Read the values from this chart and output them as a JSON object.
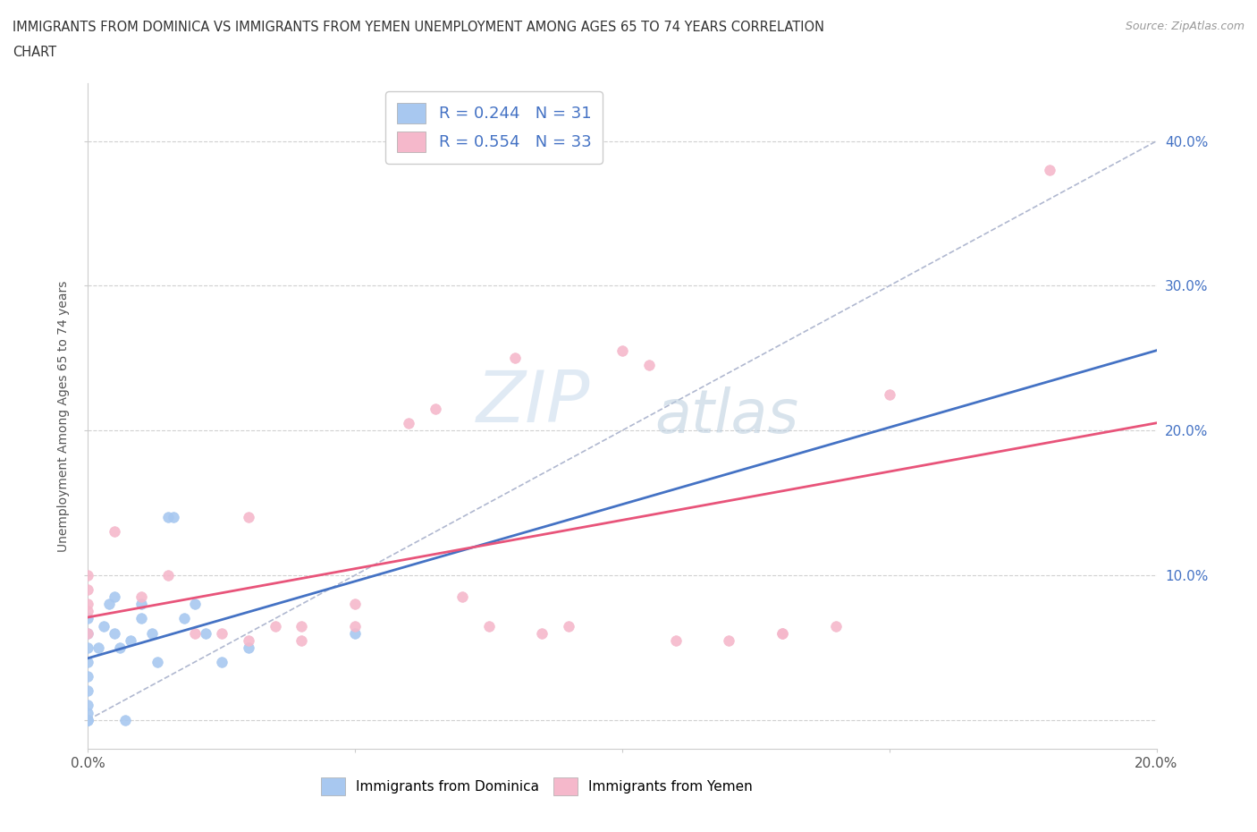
{
  "title_line1": "IMMIGRANTS FROM DOMINICA VS IMMIGRANTS FROM YEMEN UNEMPLOYMENT AMONG AGES 65 TO 74 YEARS CORRELATION",
  "title_line2": "CHART",
  "source": "Source: ZipAtlas.com",
  "ylabel": "Unemployment Among Ages 65 to 74 years",
  "xlim": [
    0.0,
    0.2
  ],
  "ylim": [
    -0.02,
    0.44
  ],
  "xticks": [
    0.0,
    0.05,
    0.1,
    0.15,
    0.2
  ],
  "xtick_labels": [
    "0.0%",
    "",
    "",
    "",
    "20.0%"
  ],
  "yticks": [
    0.0,
    0.1,
    0.2,
    0.3,
    0.4
  ],
  "ytick_labels": [
    "",
    "10.0%",
    "20.0%",
    "30.0%",
    "40.0%"
  ],
  "dominica_color": "#a8c8f0",
  "yemen_color": "#f5b8cb",
  "dominica_line_color": "#4472c4",
  "yemen_line_color": "#e8547a",
  "R_dominica": 0.244,
  "N_dominica": 31,
  "R_yemen": 0.554,
  "N_yemen": 33,
  "dominica_x": [
    0.0,
    0.0,
    0.0,
    0.0,
    0.0,
    0.0,
    0.0,
    0.0,
    0.0,
    0.0,
    0.0,
    0.002,
    0.003,
    0.004,
    0.005,
    0.005,
    0.006,
    0.007,
    0.008,
    0.01,
    0.01,
    0.012,
    0.013,
    0.015,
    0.016,
    0.018,
    0.02,
    0.022,
    0.025,
    0.03,
    0.05
  ],
  "dominica_y": [
    0.0,
    0.0,
    0.0,
    0.005,
    0.01,
    0.02,
    0.03,
    0.04,
    0.05,
    0.06,
    0.07,
    0.05,
    0.065,
    0.08,
    0.06,
    0.085,
    0.05,
    0.0,
    0.055,
    0.07,
    0.08,
    0.06,
    0.04,
    0.14,
    0.14,
    0.07,
    0.08,
    0.06,
    0.04,
    0.05,
    0.06
  ],
  "yemen_x": [
    0.0,
    0.0,
    0.0,
    0.0,
    0.0,
    0.005,
    0.01,
    0.015,
    0.02,
    0.025,
    0.03,
    0.04,
    0.04,
    0.05,
    0.05,
    0.06,
    0.07,
    0.08,
    0.085,
    0.09,
    0.1,
    0.105,
    0.11,
    0.12,
    0.13,
    0.14,
    0.15,
    0.18,
    0.03,
    0.035,
    0.065,
    0.075,
    0.13
  ],
  "yemen_y": [
    0.06,
    0.075,
    0.08,
    0.09,
    0.1,
    0.13,
    0.085,
    0.1,
    0.06,
    0.06,
    0.14,
    0.055,
    0.065,
    0.065,
    0.08,
    0.205,
    0.085,
    0.25,
    0.06,
    0.065,
    0.255,
    0.245,
    0.055,
    0.055,
    0.06,
    0.065,
    0.225,
    0.38,
    0.055,
    0.065,
    0.215,
    0.065,
    0.06
  ],
  "watermark_zip": "ZIP",
  "watermark_atlas": "atlas",
  "background_color": "#ffffff",
  "grid_color": "#d0d0d0",
  "marker_size": 70,
  "legend_dominica": "Immigrants from Dominica",
  "legend_yemen": "Immigrants from Yemen"
}
